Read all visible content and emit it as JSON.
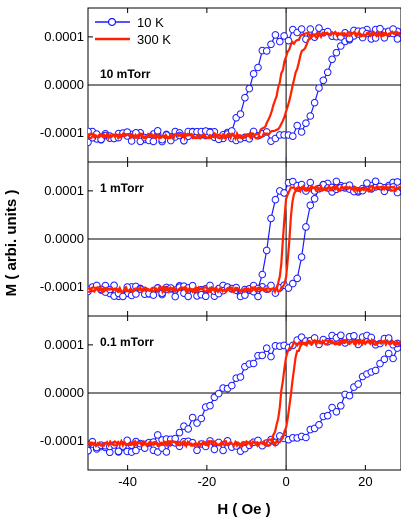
{
  "figure": {
    "xlabel": "H ( Oe )",
    "ylabel": "M ( arbi. units )"
  },
  "legend": [
    {
      "label": "10 K",
      "color": "#1a1aff",
      "style": "line-open-circle"
    },
    {
      "label": "300 K",
      "color": "#ff2200",
      "style": "line"
    }
  ],
  "chart_data": [
    {
      "type": "line",
      "panel_label": "10 mTorr",
      "xlim": [
        -50,
        29
      ],
      "ylim": [
        -0.00016,
        0.00016
      ],
      "x_ticks": [
        -40,
        -20,
        0,
        20
      ],
      "y_ticks": [
        -0.0001,
        0.0,
        0.0001
      ],
      "y_tick_labels": [
        "-0.0001",
        "0.0000",
        "0.0001"
      ],
      "series": [
        {
          "name": "10 K",
          "Ms": 0.000107,
          "Hc": 9.0,
          "width": 4.5
        },
        {
          "name": "300 K",
          "Ms": 0.000106,
          "Hc": 1.8,
          "width": 3.0
        }
      ]
    },
    {
      "type": "line",
      "panel_label": "1 mTorr",
      "xlim": [
        -50,
        29
      ],
      "ylim": [
        -0.00016,
        0.00016
      ],
      "x_ticks": [
        -40,
        -20,
        0,
        20
      ],
      "y_ticks": [
        -0.0001,
        0.0,
        0.0001
      ],
      "y_tick_labels": [
        "-0.0001",
        "0.0000",
        "0.0001"
      ],
      "series": [
        {
          "name": "10 K",
          "Ms": 0.000108,
          "Hc": 4.5,
          "width": 2.0
        },
        {
          "name": "300 K",
          "Ms": 0.000105,
          "Hc": 0.8,
          "width": 0.8
        }
      ]
    },
    {
      "type": "line",
      "panel_label": "0.1 mTorr",
      "xlim": [
        -50,
        29
      ],
      "ylim": [
        -0.00016,
        0.00016
      ],
      "x_ticks": [
        -40,
        -20,
        0,
        20
      ],
      "y_ticks": [
        -0.0001,
        0.0,
        0.0001
      ],
      "y_tick_labels": [
        "-0.0001",
        "0.0000",
        "0.0001"
      ],
      "series": [
        {
          "name": "10 K",
          "Ms": 0.000112,
          "Hc": 16.0,
          "width": 12.0
        },
        {
          "name": "300 K",
          "Ms": 0.000105,
          "Hc": 1.2,
          "width": 1.5
        }
      ]
    }
  ]
}
